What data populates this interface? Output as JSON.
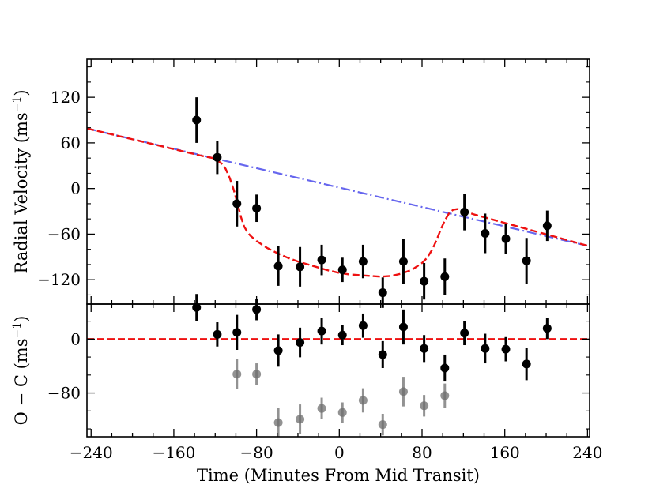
{
  "chart_data": [
    {
      "type": "scatter",
      "panel": "top",
      "ylabel_main": "Radial Velocity (ms",
      "ylabel_sup": "−1",
      "ylabel_close": ")",
      "xlim": [
        -244,
        242
      ],
      "ylim": [
        -152,
        170
      ],
      "yticks": [
        120,
        60,
        0,
        -60,
        -120
      ],
      "ytick_labels": [
        "120",
        "60",
        "0",
        "−60",
        "−120"
      ],
      "xticks": [
        -240,
        -160,
        -80,
        0,
        80,
        160,
        240
      ],
      "colors": {
        "points": "#000000",
        "keplerian": "#6666ee",
        "model": "#ee1111"
      },
      "points": {
        "x": [
          -138,
          -118,
          -99,
          -80,
          -59,
          -38,
          -17,
          3,
          23,
          42,
          62,
          82,
          102,
          121,
          141,
          161,
          181,
          201
        ],
        "y": [
          90,
          41,
          -20,
          -26,
          -102,
          -103,
          -94,
          -107,
          -96,
          -137,
          -96,
          -122,
          -116,
          -31,
          -59,
          -66,
          -95,
          -49
        ],
        "err": [
          30,
          22,
          30,
          18,
          26,
          26,
          20,
          16,
          22,
          20,
          30,
          24,
          24,
          24,
          26,
          20,
          30,
          20
        ]
      },
      "keplerian_line": {
        "x": [
          -244,
          242
        ],
        "y": [
          79,
          -76
        ]
      },
      "rm_model": {
        "x": [
          -244,
          -130,
          -122,
          -118,
          -114,
          -110,
          -106,
          -102,
          -98,
          -95,
          -92,
          -89,
          -86,
          -80,
          -70,
          -60,
          -50,
          -40,
          -30,
          -20,
          -10,
          0,
          10,
          20,
          30,
          40,
          50,
          60,
          70,
          80,
          85,
          90,
          94,
          98,
          102,
          106,
          110,
          114,
          118,
          122,
          130,
          242
        ],
        "y": [
          79,
          42,
          40,
          37,
          33,
          26,
          14,
          -2,
          -22,
          -38,
          -50,
          -57,
          -62,
          -69,
          -78,
          -85,
          -91,
          -96,
          -100,
          -104,
          -108,
          -111,
          -113,
          -114,
          -115,
          -116,
          -115,
          -112,
          -107,
          -98,
          -91,
          -80,
          -68,
          -54,
          -42,
          -33,
          -28,
          -27,
          -28,
          -30,
          -34,
          -76
        ]
      }
    },
    {
      "type": "scatter",
      "panel": "bottom",
      "ylabel_main": "O − C (ms",
      "ylabel_sup": "−1",
      "ylabel_close": ")",
      "xlabel": "Time (Minutes From Mid Transit)",
      "xlim": [
        -244,
        242
      ],
      "ylim": [
        -145,
        52
      ],
      "yticks": [
        0,
        -80
      ],
      "ytick_labels": [
        "0",
        "−80"
      ],
      "xticks": [
        -240,
        -160,
        -80,
        0,
        80,
        160,
        240
      ],
      "xtick_labels": [
        "−240",
        "−160",
        "−80",
        "0",
        "80",
        "160",
        "240"
      ],
      "colors": {
        "points": "#000000",
        "gray_points": "#6e6e6e",
        "zero_line": "#ee1111"
      },
      "residuals": {
        "x": [
          -138,
          -118,
          -99,
          -80,
          -59,
          -38,
          -17,
          3,
          23,
          42,
          62,
          82,
          102,
          121,
          141,
          161,
          181,
          201
        ],
        "y": [
          47,
          7,
          10,
          44,
          -17,
          -5,
          12,
          6,
          20,
          -23,
          18,
          -14,
          -43,
          9,
          -14,
          -15,
          -37,
          16
        ],
        "err": [
          20,
          18,
          26,
          16,
          24,
          22,
          20,
          15,
          18,
          20,
          26,
          20,
          20,
          18,
          22,
          18,
          24,
          16
        ]
      },
      "gray_points": {
        "x": [
          -99,
          -80,
          -59,
          -38,
          -17,
          3,
          23,
          42,
          62,
          82,
          102
        ],
        "y": [
          -52,
          -52,
          -124,
          -119,
          -103,
          -109,
          -91,
          -127,
          -78,
          -99,
          -84
        ],
        "err": [
          22,
          16,
          22,
          22,
          16,
          15,
          18,
          16,
          22,
          16,
          18
        ]
      }
    }
  ]
}
